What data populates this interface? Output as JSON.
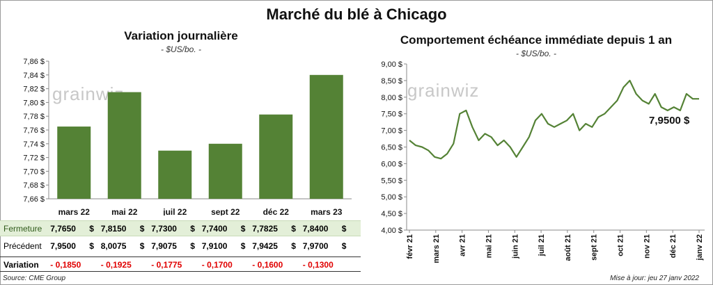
{
  "title": "Marché du blé à Chicago",
  "left": {
    "title": "Variation  journalière",
    "unit": "- $US/bo. -",
    "watermark": "grainwiz"
  },
  "right": {
    "title": "Comportement  échéance immédiate depuis 1 an",
    "unit": "- $US/bo. -",
    "watermark": "grainwiz",
    "last_value_label": "7,9500 $"
  },
  "table": {
    "rows": [
      {
        "label": "Fermeture",
        "values": [
          "7,7650",
          "7,8150",
          "7,7300",
          "7,7400",
          "7,7825",
          "7,8400"
        ],
        "unit": "$"
      },
      {
        "label": "Précédent",
        "values": [
          "7,9500",
          "8,0075",
          "7,9075",
          "7,9100",
          "7,9425",
          "7,9700"
        ],
        "unit": "$"
      },
      {
        "label": "Variation",
        "values": [
          "- 0,1850",
          "- 0,1925",
          "- 0,1775",
          "- 0,1700",
          "- 0,1600",
          "- 0,1300"
        ],
        "unit": ""
      }
    ]
  },
  "footer": {
    "source": "Source: CME Group",
    "updated": "Mise à jour: jeu 27 janv 2022"
  },
  "colors": {
    "bar": "#548235",
    "line": "#548235",
    "negative": "#e00000",
    "band": "#e3efd8"
  },
  "chart_data": [
    {
      "type": "bar",
      "title": "Variation  journalière",
      "subtitle": "- $US/bo. -",
      "categories": [
        "mars 22",
        "mai 22",
        "juil 22",
        "sept 22",
        "déc 22",
        "mars 23"
      ],
      "values": [
        7.765,
        7.815,
        7.73,
        7.74,
        7.7825,
        7.84
      ],
      "ylim": [
        7.66,
        7.86
      ],
      "yticks": [
        "7,66 $",
        "7,68 $",
        "7,70 $",
        "7,72 $",
        "7,74 $",
        "7,76 $",
        "7,78 $",
        "7,80 $",
        "7,82 $",
        "7,84 $",
        "7,86 $"
      ],
      "grid": false
    },
    {
      "type": "line",
      "title": "Comportement  échéance immédiate depuis 1 an",
      "subtitle": "- $US/bo. -",
      "xticks": [
        "févr 21",
        "mars 21",
        "avr 21",
        "mai 21",
        "juin 21",
        "juil 21",
        "août 21",
        "sept 21",
        "oct 21",
        "nov 21",
        "déc 21",
        "janv 22"
      ],
      "ylim": [
        4.0,
        9.0
      ],
      "yticks": [
        "4,00 $",
        "4,50 $",
        "5,00 $",
        "5,50 $",
        "6,00 $",
        "6,50 $",
        "7,00 $",
        "7,50 $",
        "8,00 $",
        "8,50 $",
        "9,00 $"
      ],
      "grid": false,
      "x": [
        "févr 21",
        "févr 21",
        "févr 21",
        "mars 21",
        "mars 21",
        "mars 21",
        "mars 21",
        "avr 21",
        "avr 21",
        "avr 21",
        "avr 21",
        "mai 21",
        "mai 21",
        "mai 21",
        "mai 21",
        "juin 21",
        "juin 21",
        "juin 21",
        "juin 21",
        "juil 21",
        "juil 21",
        "juil 21",
        "juil 21",
        "août 21",
        "août 21",
        "août 21",
        "août 21",
        "sept 21",
        "sept 21",
        "sept 21",
        "sept 21",
        "oct 21",
        "oct 21",
        "oct 21",
        "oct 21",
        "nov 21",
        "nov 21",
        "nov 21",
        "nov 21",
        "déc 21",
        "déc 21",
        "déc 21",
        "déc 21",
        "janv 22",
        "janv 22",
        "janv 22",
        "janv 22"
      ],
      "series": [
        {
          "values": [
            6.7,
            6.55,
            6.5,
            6.4,
            6.2,
            6.15,
            6.3,
            6.6,
            7.5,
            7.6,
            7.1,
            6.7,
            6.9,
            6.8,
            6.55,
            6.7,
            6.5,
            6.2,
            6.5,
            6.8,
            7.3,
            7.5,
            7.2,
            7.1,
            7.2,
            7.3,
            7.5,
            7.0,
            7.2,
            7.1,
            7.4,
            7.5,
            7.7,
            7.9,
            8.3,
            8.5,
            8.1,
            7.9,
            7.8,
            8.1,
            7.7,
            7.6,
            7.7,
            7.6,
            8.1,
            7.95,
            7.95
          ]
        }
      ]
    }
  ]
}
